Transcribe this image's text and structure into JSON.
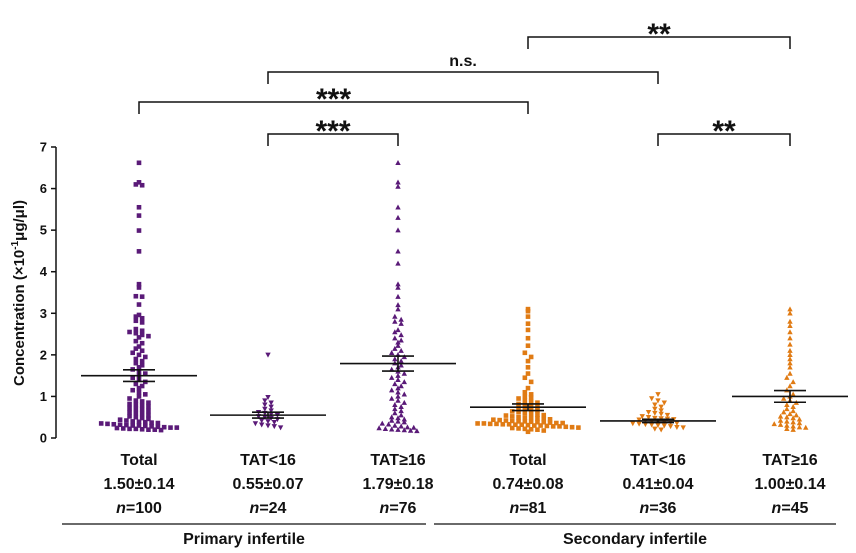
{
  "chart_data": {
    "type": "scatter",
    "ylabel_pre": "Concentration (×10",
    "ylabel_sup": "-1",
    "ylabel_post": "μg/μl)",
    "ylim": [
      0,
      7
    ],
    "yticks": [
      "0",
      "1",
      "2",
      "3",
      "4",
      "5",
      "6",
      "7"
    ],
    "colors": {
      "primary": "#5a1a78",
      "secondary": "#e07b14"
    },
    "series": [
      {
        "name": "Total",
        "summary": "1.50±0.14",
        "n_label": "n",
        "n_value": "=100",
        "group": "primary",
        "marker": "square",
        "mean": 1.5,
        "sem": 0.14,
        "values": [
          6.62,
          6.15,
          6.1,
          6.08,
          5.55,
          5.35,
          4.99,
          4.49,
          3.7,
          3.62,
          3.41,
          3.4,
          3.21,
          2.96,
          2.92,
          2.88,
          2.82,
          2.78,
          2.62,
          2.58,
          2.55,
          2.52,
          2.48,
          2.45,
          2.42,
          2.33,
          2.28,
          2.2,
          2.15,
          2.1,
          2.05,
          2.0,
          1.95,
          1.9,
          1.85,
          1.8,
          1.75,
          1.7,
          1.65,
          1.6,
          1.55,
          1.5,
          1.45,
          1.4,
          1.35,
          1.3,
          1.25,
          1.2,
          1.15,
          1.1,
          1.05,
          1.0,
          0.95,
          0.9,
          0.88,
          0.85,
          0.82,
          0.8,
          0.78,
          0.75,
          0.72,
          0.7,
          0.68,
          0.65,
          0.62,
          0.6,
          0.58,
          0.55,
          0.52,
          0.5,
          0.48,
          0.46,
          0.44,
          0.42,
          0.4,
          0.39,
          0.38,
          0.37,
          0.36,
          0.35,
          0.34,
          0.33,
          0.32,
          0.31,
          0.3,
          0.3,
          0.29,
          0.28,
          0.27,
          0.26,
          0.25,
          0.25,
          0.24,
          0.23,
          0.22,
          0.22,
          0.21,
          0.2,
          0.2,
          0.19
        ]
      },
      {
        "name": "TAT<16",
        "summary": "0.55±0.07",
        "n_label": "n",
        "n_value": "=24",
        "group": "primary",
        "marker": "triangle-down",
        "mean": 0.55,
        "sem": 0.07,
        "values": [
          2.0,
          0.98,
          0.9,
          0.85,
          0.8,
          0.75,
          0.7,
          0.66,
          0.62,
          0.6,
          0.58,
          0.55,
          0.52,
          0.5,
          0.48,
          0.45,
          0.42,
          0.4,
          0.38,
          0.35,
          0.32,
          0.3,
          0.28,
          0.25
        ]
      },
      {
        "name": "TAT≥16",
        "summary": "1.79±0.18",
        "n_label": "n",
        "n_value": "=76",
        "group": "primary",
        "marker": "triangle-up",
        "mean": 1.79,
        "sem": 0.18,
        "values": [
          6.62,
          6.15,
          6.05,
          5.55,
          5.3,
          5.0,
          4.49,
          4.2,
          3.7,
          3.62,
          3.4,
          3.2,
          3.1,
          2.92,
          2.85,
          2.8,
          2.75,
          2.6,
          2.55,
          2.48,
          2.4,
          2.35,
          2.3,
          2.22,
          2.15,
          2.1,
          2.05,
          2.0,
          1.95,
          1.9,
          1.85,
          1.8,
          1.75,
          1.7,
          1.65,
          1.6,
          1.55,
          1.5,
          1.45,
          1.4,
          1.35,
          1.3,
          1.25,
          1.2,
          1.15,
          1.1,
          1.05,
          1.0,
          0.95,
          0.9,
          0.85,
          0.8,
          0.75,
          0.7,
          0.65,
          0.6,
          0.55,
          0.5,
          0.48,
          0.45,
          0.42,
          0.4,
          0.38,
          0.35,
          0.33,
          0.3,
          0.28,
          0.26,
          0.25,
          0.24,
          0.22,
          0.21,
          0.2,
          0.19,
          0.18,
          0.17
        ]
      },
      {
        "name": "Total",
        "summary": "0.74±0.08",
        "n_label": "n",
        "n_value": "=81",
        "group": "secondary",
        "marker": "square",
        "mean": 0.74,
        "sem": 0.08,
        "values": [
          3.1,
          3.05,
          2.92,
          2.75,
          2.6,
          2.4,
          2.22,
          2.05,
          1.95,
          1.85,
          1.7,
          1.55,
          1.45,
          1.35,
          1.2,
          1.1,
          1.05,
          1.0,
          0.98,
          0.95,
          0.9,
          0.88,
          0.85,
          0.82,
          0.8,
          0.78,
          0.75,
          0.72,
          0.7,
          0.68,
          0.66,
          0.64,
          0.62,
          0.6,
          0.58,
          0.56,
          0.55,
          0.54,
          0.52,
          0.5,
          0.49,
          0.48,
          0.47,
          0.46,
          0.45,
          0.44,
          0.43,
          0.42,
          0.41,
          0.4,
          0.4,
          0.39,
          0.38,
          0.38,
          0.37,
          0.36,
          0.36,
          0.35,
          0.35,
          0.34,
          0.34,
          0.33,
          0.33,
          0.32,
          0.32,
          0.31,
          0.3,
          0.3,
          0.29,
          0.28,
          0.28,
          0.27,
          0.26,
          0.25,
          0.24,
          0.23,
          0.22,
          0.21,
          0.2,
          0.18,
          0.15
        ]
      },
      {
        "name": "TAT<16",
        "summary": "0.41±0.04",
        "n_label": "n",
        "n_value": "=36",
        "group": "secondary",
        "marker": "triangle-down",
        "mean": 0.41,
        "sem": 0.04,
        "values": [
          1.05,
          0.95,
          0.9,
          0.85,
          0.8,
          0.75,
          0.7,
          0.66,
          0.62,
          0.6,
          0.58,
          0.55,
          0.52,
          0.5,
          0.48,
          0.47,
          0.46,
          0.45,
          0.44,
          0.42,
          0.4,
          0.39,
          0.38,
          0.37,
          0.36,
          0.35,
          0.34,
          0.33,
          0.32,
          0.31,
          0.3,
          0.28,
          0.26,
          0.25,
          0.22,
          0.2
        ]
      },
      {
        "name": "TAT≥16",
        "summary": "1.00±0.14",
        "n_label": "n",
        "n_value": "=45",
        "group": "secondary",
        "marker": "triangle-up",
        "mean": 1.0,
        "sem": 0.14,
        "values": [
          3.1,
          3.0,
          2.8,
          2.7,
          2.55,
          2.4,
          2.25,
          2.1,
          2.0,
          1.9,
          1.8,
          1.7,
          1.55,
          1.45,
          1.35,
          1.25,
          1.15,
          1.05,
          1.0,
          0.95,
          0.9,
          0.85,
          0.8,
          0.75,
          0.7,
          0.65,
          0.62,
          0.58,
          0.55,
          0.52,
          0.5,
          0.48,
          0.45,
          0.42,
          0.4,
          0.38,
          0.36,
          0.34,
          0.32,
          0.3,
          0.28,
          0.26,
          0.25,
          0.22,
          0.2
        ]
      }
    ],
    "groups": [
      {
        "label": "Primary infertile",
        "from": 0,
        "to": 2
      },
      {
        "label": "Secondary infertile",
        "from": 3,
        "to": 5
      }
    ],
    "comparisons": [
      {
        "from": 3,
        "to": 5,
        "label": "**",
        "style": "stars"
      },
      {
        "from": 1,
        "to": 4,
        "label": "n.s.",
        "style": "ns"
      },
      {
        "from": 0,
        "to": 3,
        "label": "***",
        "style": "stars"
      },
      {
        "from": 1,
        "to": 2,
        "label": "***",
        "style": "stars"
      },
      {
        "from": 4,
        "to": 5,
        "label": "**",
        "style": "stars"
      }
    ]
  }
}
